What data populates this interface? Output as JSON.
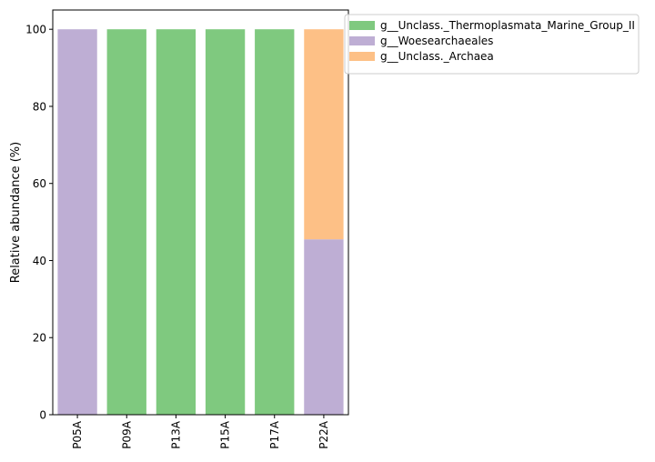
{
  "chart_data": {
    "type": "bar",
    "stacked": true,
    "categories": [
      "P05A",
      "P09A",
      "P13A",
      "P15A",
      "P17A",
      "P22A"
    ],
    "series": [
      {
        "name": "g__Unclass._Thermoplasmata_Marine_Group_II",
        "color": "#7fc97f",
        "values": [
          0,
          100,
          100,
          100,
          100,
          0
        ]
      },
      {
        "name": "g__Woesearchaeales",
        "color": "#beaed4",
        "values": [
          100,
          0,
          0,
          0,
          0,
          45.5
        ]
      },
      {
        "name": "g__Unclass._Archaea",
        "color": "#fdc086",
        "values": [
          0,
          0,
          0,
          0,
          0,
          54.5
        ]
      }
    ],
    "stack_order": [
      "g__Woesearchaeales",
      "g__Unclass._Thermoplasmata_Marine_Group_II",
      "g__Unclass._Archaea"
    ],
    "legend_order": [
      "g__Unclass._Thermoplasmata_Marine_Group_II",
      "g__Woesearchaeales",
      "g__Unclass._Archaea"
    ],
    "ylabel": "Relative abundance (%)",
    "xlabel": "",
    "ylim": [
      0,
      105
    ],
    "yticks": [
      0,
      20,
      40,
      60,
      80,
      100
    ],
    "grid": false,
    "legend_position": "top-right, outside plot"
  }
}
